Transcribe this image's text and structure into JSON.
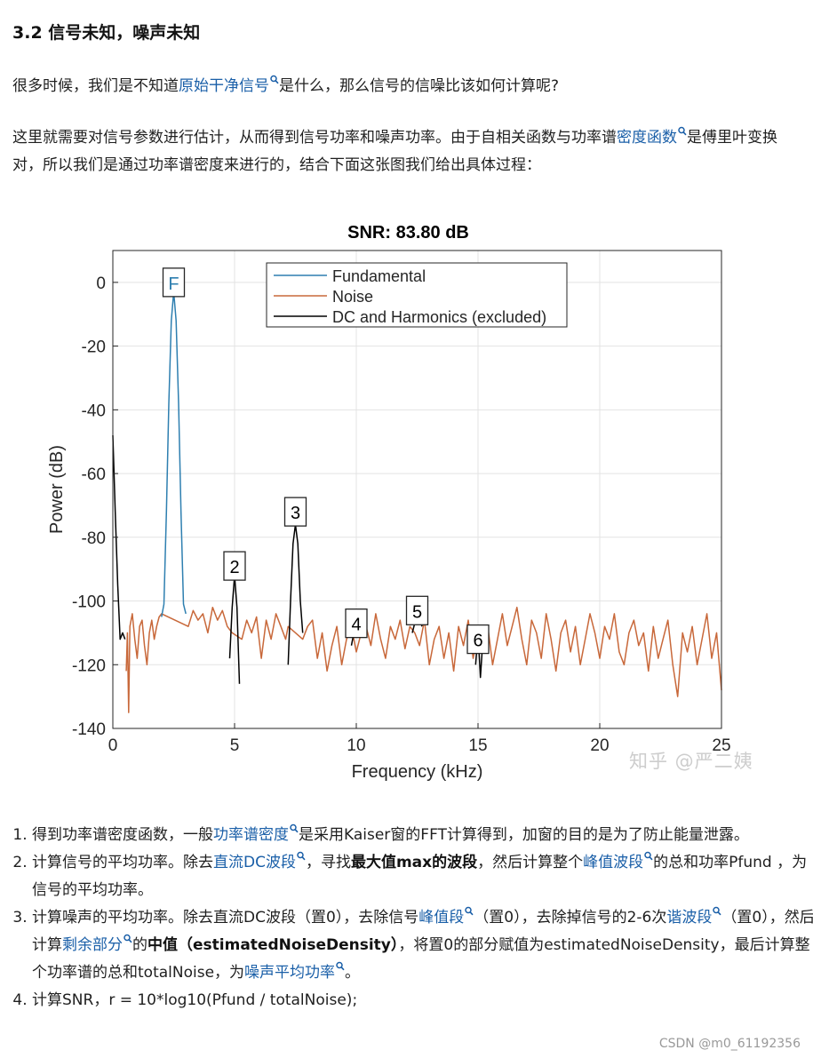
{
  "heading": "3.2 信号未知，噪声未知",
  "para1": {
    "text_a": "很多时候，我们是不知道",
    "link": "原始干净信号",
    "text_b": "是什么，那么信号的信噪比该如何计算呢?"
  },
  "para2": {
    "text_a": "这里就需要对信号参数进行估计，从而得到信号功率和噪声功率。由于自相关函数与功率谱",
    "link": "密度函数",
    "text_b": "是傅里叶变换对，所以我们是通过功率谱密度来进行的，结合下面这张图我们给出具体过程："
  },
  "chart_data": {
    "type": "line",
    "title": "SNR:  83.80 dB",
    "xlabel": "Frequency (kHz)",
    "ylabel": "Power (dB)",
    "xlim": [
      0,
      25
    ],
    "ylim": [
      -140,
      10
    ],
    "xticks": [
      0,
      5,
      10,
      15,
      20,
      25
    ],
    "yticks": [
      0,
      -20,
      -40,
      -60,
      -80,
      -100,
      -120,
      -140
    ],
    "grid": true,
    "legend_position": "top-center",
    "series": [
      {
        "name": "Fundamental",
        "color": "#2e7fb0",
        "x": [
          2.0,
          2.1,
          2.2,
          2.3,
          2.4,
          2.5,
          2.6,
          2.7,
          2.8,
          2.9,
          3.0
        ],
        "y": [
          -105,
          -101,
          -72,
          -38,
          -12,
          -3,
          -12,
          -38,
          -72,
          -101,
          -104
        ]
      },
      {
        "name": "Noise",
        "color": "#c8683a",
        "x": [
          0.55,
          0.6,
          0.65,
          0.7,
          0.8,
          0.9,
          1.0,
          1.1,
          1.2,
          1.3,
          1.4,
          1.5,
          1.6,
          1.7,
          1.8,
          1.9,
          2.0,
          3.1,
          3.3,
          3.5,
          3.7,
          3.9,
          4.1,
          4.3,
          4.5,
          4.7,
          4.9,
          5.3,
          5.5,
          5.7,
          5.9,
          6.1,
          6.3,
          6.5,
          6.7,
          6.9,
          7.1,
          7.2,
          7.8,
          8.0,
          8.2,
          8.4,
          8.6,
          8.8,
          9.0,
          9.2,
          9.4,
          9.6,
          9.8,
          10.0,
          10.2,
          10.4,
          10.6,
          10.8,
          11.0,
          11.2,
          11.4,
          11.6,
          11.8,
          12.0,
          12.2,
          12.4,
          12.6,
          12.8,
          13.0,
          13.2,
          13.4,
          13.6,
          13.8,
          14.0,
          14.2,
          14.4,
          14.6,
          14.8,
          15.0,
          15.2,
          15.4,
          15.6,
          15.8,
          16.0,
          16.2,
          16.4,
          16.6,
          16.8,
          17.0,
          17.2,
          17.4,
          17.6,
          17.8,
          18.0,
          18.2,
          18.4,
          18.6,
          18.8,
          19.0,
          19.2,
          19.4,
          19.6,
          19.8,
          20.0,
          20.2,
          20.4,
          20.6,
          20.8,
          21.0,
          21.2,
          21.4,
          21.6,
          21.8,
          22.0,
          22.2,
          22.4,
          22.6,
          22.8,
          23.0,
          23.2,
          23.4,
          23.6,
          23.8,
          24.0,
          24.2,
          24.4,
          24.6,
          24.8,
          25.0
        ],
        "y": [
          -122,
          -110,
          -135,
          -108,
          -104,
          -112,
          -118,
          -108,
          -106,
          -114,
          -120,
          -110,
          -106,
          -112,
          -108,
          -105,
          -104,
          -108,
          -103,
          -106,
          -104,
          -110,
          -102,
          -106,
          -103,
          -108,
          -110,
          -112,
          -106,
          -110,
          -105,
          -118,
          -106,
          -112,
          -104,
          -108,
          -112,
          -108,
          -112,
          -108,
          -106,
          -118,
          -110,
          -122,
          -114,
          -108,
          -120,
          -112,
          -108,
          -116,
          -110,
          -108,
          -114,
          -104,
          -112,
          -118,
          -108,
          -112,
          -106,
          -115,
          -108,
          -110,
          -114,
          -106,
          -120,
          -112,
          -108,
          -118,
          -110,
          -122,
          -108,
          -114,
          -106,
          -118,
          -110,
          -116,
          -108,
          -120,
          -112,
          -104,
          -114,
          -108,
          -102,
          -112,
          -120,
          -106,
          -110,
          -118,
          -104,
          -112,
          -122,
          -110,
          -106,
          -116,
          -108,
          -120,
          -112,
          -104,
          -110,
          -118,
          -108,
          -112,
          -104,
          -116,
          -120,
          -110,
          -106,
          -114,
          -110,
          -122,
          -108,
          -118,
          -112,
          -106,
          -120,
          -130,
          -110,
          -116,
          -108,
          -120,
          -112,
          -104,
          -118,
          -110,
          -128
        ]
      },
      {
        "name": "DC and Harmonics (excluded)",
        "color": "#000000",
        "segments": [
          {
            "x": [
              0.0,
              0.1,
              0.2,
              0.3,
              0.4,
              0.5
            ],
            "y": [
              -48,
              -72,
              -95,
              -112,
              -110,
              -112
            ]
          },
          {
            "x": [
              4.8,
              4.9,
              5.0,
              5.1,
              5.2
            ],
            "y": [
              -118,
              -102,
              -92,
              -102,
              -126
            ]
          },
          {
            "x": [
              7.2,
              7.3,
              7.4,
              7.5,
              7.6,
              7.7,
              7.8
            ],
            "y": [
              -120,
              -100,
              -82,
              -76,
              -82,
              -100,
              -110
            ]
          },
          {
            "x": [
              9.8,
              10.0,
              10.2
            ],
            "y": [
              -114,
              -106,
              -110
            ]
          },
          {
            "x": [
              12.3,
              12.5,
              12.7
            ],
            "y": [
              -110,
              -104,
              -108
            ]
          },
          {
            "x": [
              14.9,
              15.0,
              15.1,
              15.2
            ],
            "y": [
              -120,
              -110,
              -124,
              -112
            ]
          }
        ]
      }
    ],
    "annotations": [
      {
        "label": "F",
        "x": 2.5,
        "y": 0,
        "color": "#2e7fb0"
      },
      {
        "label": "2",
        "x": 5.0,
        "y": -89,
        "color": "#000000"
      },
      {
        "label": "3",
        "x": 7.5,
        "y": -72,
        "color": "#000000"
      },
      {
        "label": "4",
        "x": 10.0,
        "y": -107,
        "color": "#000000"
      },
      {
        "label": "5",
        "x": 12.5,
        "y": -103,
        "color": "#000000"
      },
      {
        "label": "6",
        "x": 15.0,
        "y": -112,
        "color": "#000000"
      }
    ]
  },
  "watermark": "知乎 @严二姨",
  "steps": [
    {
      "a": "得到功率谱密度函数，一般",
      "l1": "功率谱密度",
      "b": "是采用Kaiser窗的FFT计算得到，加窗的目的是为了防止能量泄露。"
    },
    {
      "a": "计算信号的平均功率。除去",
      "l1": "直流DC波段",
      "b": "，寻找",
      "bold": "最大值max的波段",
      "c": "，然后计算整个",
      "l2": "峰值波段",
      "d": "的总和功率Pfund ，为信号的平均功率。"
    },
    {
      "a": "计算噪声的平均功率。除去直流DC波段（置0），去除信号",
      "l1": "峰值段",
      "b": "（置0），去除掉信号的2-6次",
      "l2": "谐波段",
      "c": "（置0），然后计算",
      "l3": "剩余部分",
      "d": "的",
      "bold": "中值（estimatedNoiseDensity）",
      "e": "，将置0的部分赋值为estimatedNoiseDensity，最后计算整个功率谱的总和totalNoise，为",
      "l4": "噪声平均功率",
      "f": "。"
    },
    {
      "a": "计算SNR，r = 10*log10(Pfund / totalNoise);"
    }
  ],
  "footer": "CSDN @m0_61192356"
}
